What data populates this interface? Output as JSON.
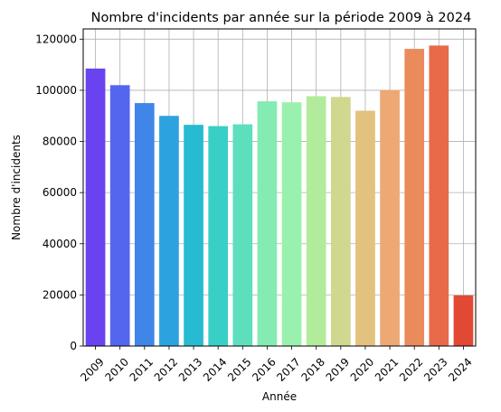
{
  "chart_data": {
    "type": "bar",
    "title": "Nombre d'incidents par année sur la période 2009 à 2024",
    "xlabel": "Année",
    "ylabel": "Nombre d'incidents",
    "categories": [
      "2009",
      "2010",
      "2011",
      "2012",
      "2013",
      "2014",
      "2015",
      "2016",
      "2017",
      "2018",
      "2019",
      "2020",
      "2021",
      "2022",
      "2023",
      "2024"
    ],
    "values": [
      108500,
      102000,
      95000,
      90000,
      86500,
      86000,
      86700,
      95700,
      95300,
      97700,
      97400,
      92000,
      100100,
      116200,
      117500,
      19800
    ],
    "colors": [
      "#6a43f0",
      "#5566ee",
      "#3f86e8",
      "#2ca3de",
      "#27bbd2",
      "#38d0c6",
      "#5ddfbd",
      "#84ebb3",
      "#9af1ad",
      "#b3eb9c",
      "#cfd88e",
      "#e3c17f",
      "#eea874",
      "#ea8b5c",
      "#e86a48",
      "#e24935"
    ],
    "yticks": [
      0,
      20000,
      40000,
      60000,
      80000,
      100000,
      120000
    ],
    "ylim": [
      0,
      124000
    ],
    "grid": true,
    "xtick_rotation": 45
  }
}
